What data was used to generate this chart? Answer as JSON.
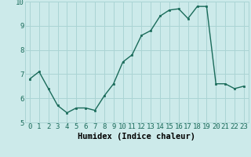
{
  "x": [
    0,
    1,
    2,
    3,
    4,
    5,
    6,
    7,
    8,
    9,
    10,
    11,
    12,
    13,
    14,
    15,
    16,
    17,
    18,
    19,
    20,
    21,
    22,
    23
  ],
  "y": [
    6.8,
    7.1,
    6.4,
    5.7,
    5.4,
    5.6,
    5.6,
    5.5,
    6.1,
    6.6,
    7.5,
    7.8,
    8.6,
    8.8,
    9.4,
    9.65,
    9.7,
    9.3,
    9.8,
    9.8,
    6.6,
    6.6,
    6.4,
    6.5
  ],
  "xlabel": "Humidex (Indice chaleur)",
  "ylim": [
    5.0,
    10.0
  ],
  "xlim": [
    -0.5,
    23.5
  ],
  "line_color": "#1a6b5a",
  "bg_color": "#cceaea",
  "grid_color": "#aad4d4",
  "xlabel_fontsize": 7.5,
  "tick_fontsize": 6.5,
  "linewidth": 1.0,
  "markersize": 2.0
}
